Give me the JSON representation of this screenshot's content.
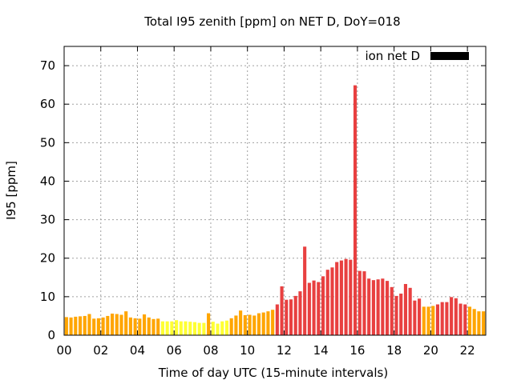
{
  "chart_data": {
    "type": "bar",
    "title": "Total I95 zenith [ppm] on NET D, DoY=018",
    "xlabel": "Time of day UTC (15-minute intervals)",
    "ylabel": "I95 [ppm]",
    "xlim": [
      0,
      23
    ],
    "ylim": [
      0,
      75
    ],
    "x_ticks": [
      {
        "value": 0,
        "label": "00"
      },
      {
        "value": 2,
        "label": "02"
      },
      {
        "value": 4,
        "label": "04"
      },
      {
        "value": 6,
        "label": "06"
      },
      {
        "value": 8,
        "label": "08"
      },
      {
        "value": 10,
        "label": "10"
      },
      {
        "value": 12,
        "label": "12"
      },
      {
        "value": 14,
        "label": "14"
      },
      {
        "value": 16,
        "label": "16"
      },
      {
        "value": 18,
        "label": "18"
      },
      {
        "value": 20,
        "label": "20"
      },
      {
        "value": 22,
        "label": "22"
      }
    ],
    "y_ticks": [
      {
        "value": 0,
        "label": "0"
      },
      {
        "value": 10,
        "label": "10"
      },
      {
        "value": 20,
        "label": "20"
      },
      {
        "value": 30,
        "label": "30"
      },
      {
        "value": 40,
        "label": "40"
      },
      {
        "value": 50,
        "label": "50"
      },
      {
        "value": 60,
        "label": "60"
      },
      {
        "value": 70,
        "label": "70"
      }
    ],
    "grid": true,
    "legend": {
      "label": "ion net D",
      "position": "top-right",
      "color": "#000000"
    },
    "bar_width_hours": 0.18,
    "colors": {
      "yellow": "#ffff33",
      "orange": "#ffa500",
      "red": "#e84040"
    },
    "thresholds": {
      "orange_from": 4,
      "red_from": 8
    },
    "series": [
      {
        "name": "ion net D",
        "start": 0.125,
        "step": 0.25,
        "values": [
          4.7,
          4.6,
          4.8,
          4.9,
          5.0,
          5.5,
          4.3,
          4.4,
          4.6,
          5.0,
          5.6,
          5.5,
          5.3,
          6.2,
          4.6,
          4.4,
          4.3,
          5.4,
          4.6,
          4.2,
          4.3,
          3.6,
          3.6,
          3.6,
          3.9,
          3.6,
          3.6,
          3.5,
          3.4,
          3.2,
          3.2,
          5.7,
          3.5,
          3.0,
          3.6,
          3.8,
          4.4,
          5.1,
          6.4,
          5.2,
          5.3,
          5.1,
          5.7,
          5.9,
          6.2,
          6.6,
          8.0,
          12.7,
          9.2,
          9.3,
          10.2,
          11.4,
          23.0,
          13.6,
          14.2,
          13.8,
          15.3,
          17.0,
          17.6,
          19.0,
          19.4,
          19.8,
          19.6,
          64.9,
          16.7,
          16.6,
          14.7,
          14.3,
          14.5,
          14.7,
          14.1,
          12.5,
          10.2,
          10.8,
          13.3,
          12.3,
          9.0,
          9.5,
          7.4,
          7.4,
          7.6,
          8.0,
          8.6,
          8.6,
          9.9,
          9.6,
          8.2,
          8.0,
          7.4,
          6.8,
          6.2,
          6.2
        ]
      }
    ]
  }
}
